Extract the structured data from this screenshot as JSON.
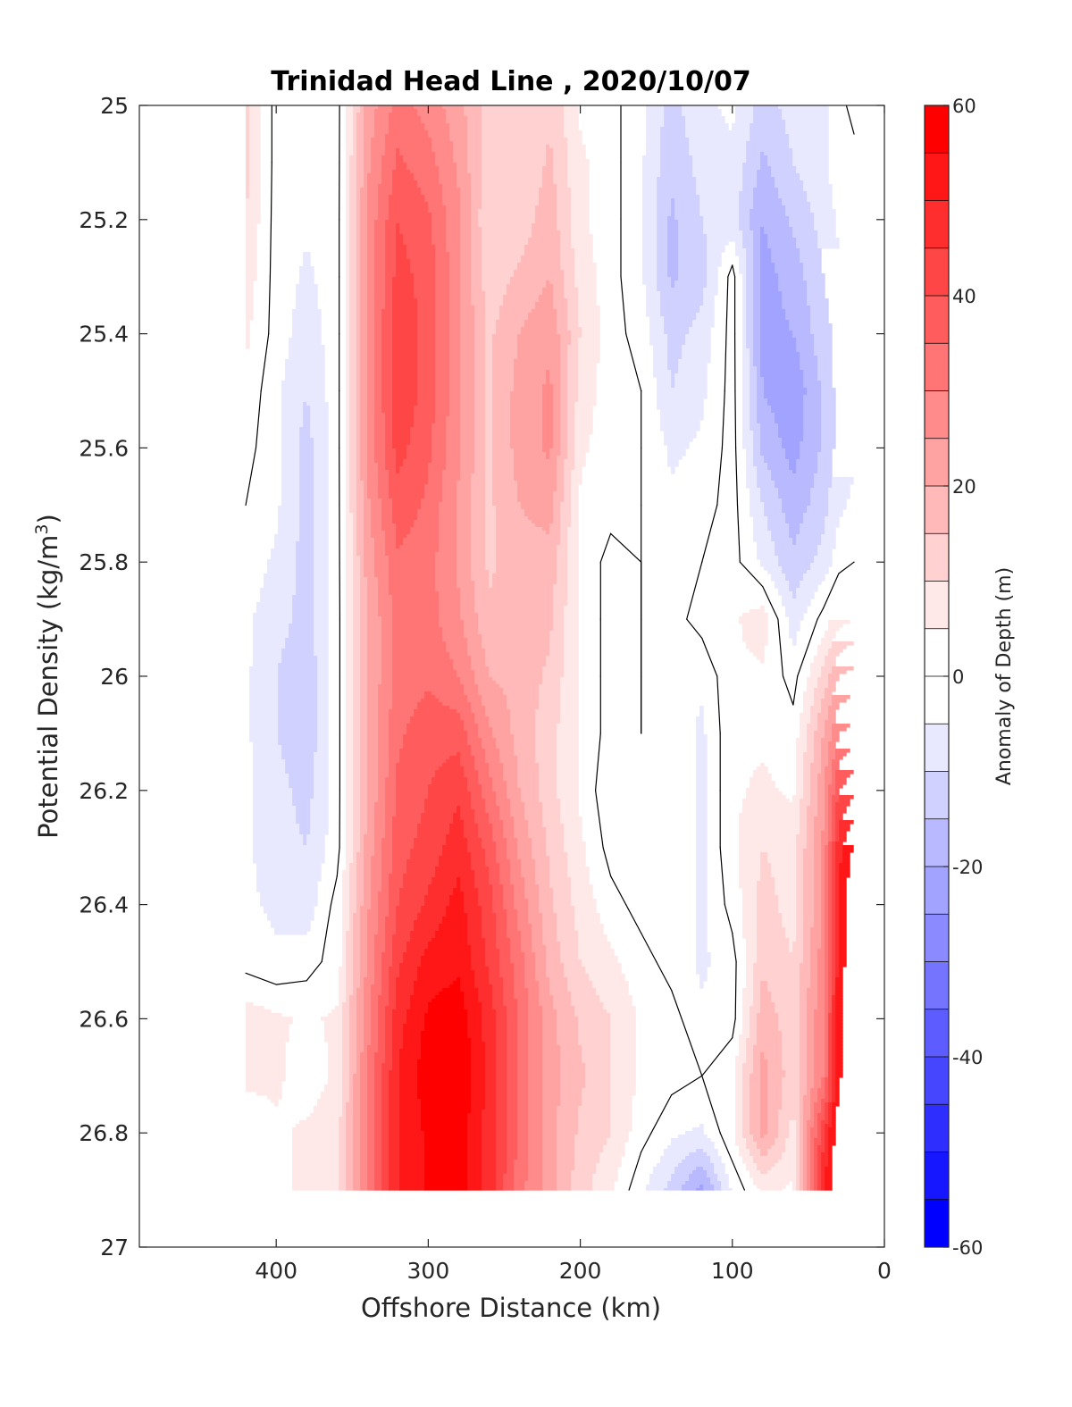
{
  "chart_data": {
    "type": "heatmap",
    "subtype": "filled-contour",
    "title": "Trinidad Head Line , 2020/10/07",
    "xlabel": "Offshore Distance (km)",
    "ylabel": "Potential Density (kg/m",
    "ylabel_superscript": "3",
    "ylabel_suffix": ")",
    "colorbar_label": "Anomaly of Depth (m)",
    "xlim": [
      490,
      0
    ],
    "x_reversed": true,
    "ylim": [
      25,
      27
    ],
    "y_reversed": true,
    "xticks": [
      400,
      300,
      200,
      100,
      0
    ],
    "xtick_labels": [
      "400",
      "300",
      "200",
      "100",
      "0"
    ],
    "yticks": [
      25,
      25.2,
      25.4,
      25.6,
      25.8,
      26,
      26.2,
      26.4,
      26.6,
      26.8,
      27
    ],
    "ytick_labels": [
      "25",
      "25.2",
      "25.4",
      "25.6",
      "25.8",
      "26",
      "26.2",
      "26.4",
      "26.6",
      "26.8",
      "27"
    ],
    "colorbar_range": [
      -60,
      60
    ],
    "colorbar_step": 5,
    "colorbar_ticks": [
      60,
      40,
      20,
      0,
      -20,
      -40,
      -60
    ],
    "colorbar_tick_labels": [
      "60",
      "40",
      "20",
      "0",
      "-20",
      "-40",
      "-60"
    ],
    "colormap": {
      "negative": "#0000ff",
      "zero": "#ffffff",
      "positive": "#ff0000"
    },
    "zero_contour": true,
    "data_extent": {
      "x": [
        420,
        20
      ],
      "y": [
        25,
        26.9
      ]
    },
    "x": [
      420,
      400,
      380,
      360,
      340,
      320,
      300,
      280,
      260,
      240,
      220,
      200,
      180,
      160,
      140,
      120,
      100,
      80,
      60,
      40,
      30,
      20
    ],
    "y": [
      25.0,
      25.1,
      25.2,
      25.3,
      25.4,
      25.5,
      25.6,
      25.7,
      25.8,
      25.9,
      26.0,
      26.1,
      26.2,
      26.3,
      26.4,
      26.5,
      26.6,
      26.7,
      26.8,
      26.9
    ],
    "z": [
      [
        12,
        -2,
        -4,
        -2,
        22,
        32,
        28,
        22,
        12,
        10,
        14,
        4,
        2,
        -4,
        -12,
        -6,
        -4,
        -12,
        -8,
        -6,
        -2,
        2
      ],
      [
        12,
        -2,
        -4,
        -2,
        24,
        36,
        32,
        24,
        12,
        10,
        16,
        6,
        2,
        -4,
        -14,
        -8,
        -6,
        -16,
        -10,
        -6,
        -2,
        -2
      ],
      [
        10,
        -2,
        -4,
        -2,
        26,
        40,
        36,
        26,
        10,
        12,
        18,
        6,
        2,
        -4,
        -16,
        -10,
        -8,
        -20,
        -14,
        -8,
        -4,
        -4
      ],
      [
        8,
        -2,
        -6,
        -2,
        26,
        42,
        38,
        26,
        12,
        16,
        20,
        8,
        2,
        -4,
        -16,
        -12,
        2,
        -22,
        -18,
        -10,
        -6,
        -6
      ],
      [
        6,
        -2,
        -8,
        -2,
        26,
        44,
        38,
        26,
        14,
        20,
        24,
        10,
        2,
        -2,
        -12,
        -8,
        2,
        -22,
        -20,
        -12,
        -8,
        -6
      ],
      [
        4,
        -4,
        -10,
        -2,
        26,
        44,
        38,
        26,
        14,
        22,
        26,
        8,
        2,
        0,
        -10,
        -6,
        2,
        -20,
        -24,
        -14,
        -8,
        -6
      ],
      [
        2,
        -4,
        -12,
        -2,
        26,
        42,
        36,
        26,
        14,
        22,
        26,
        6,
        2,
        0,
        -6,
        -4,
        2,
        -16,
        -22,
        -14,
        -8,
        -6
      ],
      [
        0,
        -4,
        -12,
        -2,
        24,
        38,
        34,
        24,
        14,
        20,
        22,
        4,
        2,
        0,
        -4,
        -2,
        2,
        -10,
        -18,
        -12,
        -6,
        -4
      ],
      [
        -2,
        -6,
        -12,
        -2,
        22,
        34,
        32,
        24,
        14,
        18,
        18,
        4,
        -2,
        0,
        -2,
        0,
        2,
        -6,
        -14,
        -8,
        -2,
        0
      ],
      [
        -4,
        -8,
        -12,
        -2,
        20,
        32,
        32,
        26,
        16,
        18,
        16,
        4,
        -2,
        0,
        -2,
        2,
        4,
        8,
        -8,
        2,
        8,
        10
      ],
      [
        -4,
        -10,
        -14,
        -2,
        20,
        32,
        34,
        30,
        20,
        18,
        14,
        4,
        -2,
        0,
        -2,
        -4,
        4,
        4,
        -2,
        12,
        20,
        22
      ],
      [
        -4,
        -10,
        -14,
        -2,
        20,
        34,
        38,
        38,
        26,
        18,
        12,
        4,
        -2,
        0,
        -2,
        -6,
        4,
        4,
        2,
        20,
        30,
        32
      ],
      [
        -4,
        -8,
        -12,
        -2,
        20,
        36,
        40,
        44,
        32,
        20,
        12,
        4,
        -4,
        -2,
        -2,
        -6,
        4,
        6,
        4,
        24,
        40,
        44
      ],
      [
        -4,
        -8,
        -10,
        -2,
        22,
        38,
        42,
        48,
        38,
        24,
        14,
        6,
        -2,
        -2,
        -2,
        -6,
        4,
        10,
        8,
        26,
        48,
        56
      ],
      [
        -4,
        -6,
        -8,
        2,
        24,
        40,
        46,
        52,
        42,
        28,
        16,
        8,
        2,
        -2,
        -2,
        -6,
        2,
        12,
        8,
        26,
        52,
        60
      ],
      [
        -2,
        -4,
        -2,
        2,
        26,
        44,
        52,
        54,
        44,
        32,
        18,
        10,
        6,
        2,
        -2,
        -6,
        -2,
        14,
        10,
        28,
        52,
        60
      ],
      [
        8,
        6,
        4,
        6,
        28,
        48,
        56,
        58,
        48,
        34,
        22,
        14,
        10,
        4,
        2,
        -4,
        -2,
        18,
        12,
        30,
        54,
        60
      ],
      [
        6,
        6,
        2,
        6,
        30,
        50,
        58,
        60,
        48,
        34,
        22,
        16,
        10,
        4,
        2,
        0,
        4,
        22,
        12,
        30,
        54,
        60
      ],
      [
        2,
        4,
        6,
        8,
        30,
        50,
        56,
        58,
        48,
        34,
        22,
        14,
        10,
        2,
        -4,
        -6,
        4,
        22,
        8,
        44,
        60,
        60
      ],
      [
        2,
        4,
        6,
        8,
        30,
        50,
        56,
        58,
        48,
        32,
        22,
        12,
        6,
        -4,
        -12,
        -22,
        -4,
        6,
        4,
        50,
        60,
        60
      ]
    ]
  }
}
